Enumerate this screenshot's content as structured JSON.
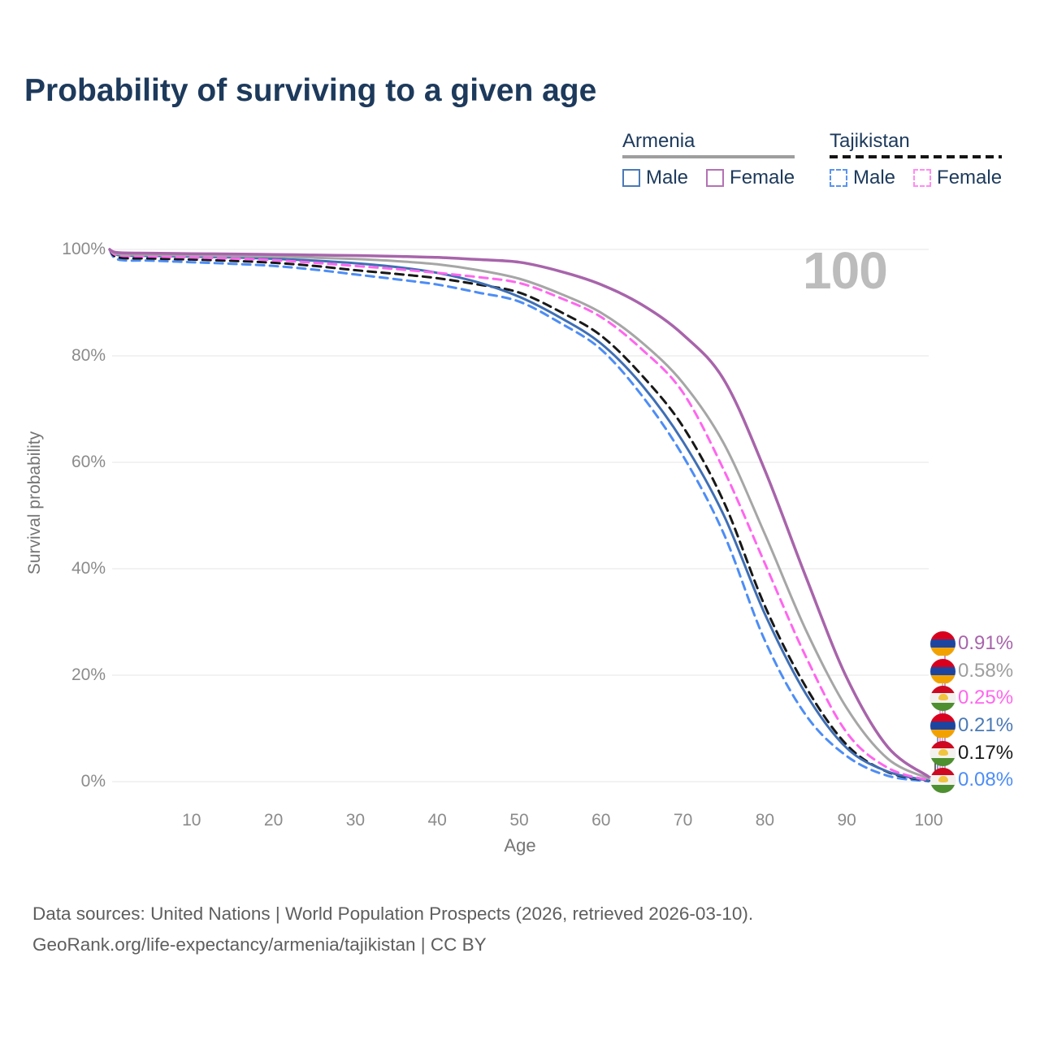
{
  "title": "Probability of surviving to a given age",
  "legend": {
    "groups": [
      {
        "label": "Armenia",
        "line_style": "solid",
        "rule_color": "#9e9e9e",
        "items": [
          {
            "label": "Male",
            "swatch_color": "#4a7ab5",
            "dashed": false
          },
          {
            "label": "Female",
            "swatch_color": "#b472b4",
            "dashed": false
          }
        ]
      },
      {
        "label": "Tajikistan",
        "line_style": "dashed",
        "rule_color": "#141414",
        "items": [
          {
            "label": "Male",
            "swatch_color": "#5a93f0",
            "dashed": true
          },
          {
            "label": "Female",
            "swatch_color": "#ff8df2",
            "dashed": true
          }
        ]
      }
    ]
  },
  "chart_data": {
    "type": "line",
    "title": "Probability of surviving to a given age",
    "xlabel": "Age",
    "ylabel": "Survival probability",
    "watermark": "100",
    "xlim": [
      0,
      100
    ],
    "ylim": [
      0,
      100
    ],
    "grid": "horizontal",
    "grid_color": "#e9e9e9",
    "x_ticks": [
      10,
      20,
      30,
      40,
      50,
      60,
      70,
      80,
      90,
      100
    ],
    "y_ticks": [
      "0%",
      "20%",
      "40%",
      "60%",
      "80%",
      "100%"
    ],
    "x": [
      0,
      1,
      5,
      10,
      15,
      20,
      25,
      30,
      35,
      40,
      45,
      50,
      55,
      60,
      65,
      70,
      75,
      80,
      85,
      90,
      95,
      100
    ],
    "series": [
      {
        "name": "Armenia Female",
        "country": "Armenia",
        "sex": "Female",
        "color": "#a864ab",
        "dashed": false,
        "width": 3.5,
        "end_label": "0.91%",
        "values": [
          100,
          99.4,
          99.3,
          99.2,
          99.15,
          99.05,
          98.95,
          98.85,
          98.7,
          98.5,
          98.1,
          97.6,
          95.9,
          93.4,
          89.6,
          84.0,
          75.5,
          58.5,
          38.5,
          19.5,
          6.5,
          0.91
        ]
      },
      {
        "name": "Armenia Both sexes",
        "country": "Armenia",
        "sex": "Both",
        "color": "#a6a6a6",
        "dashed": false,
        "width": 3,
        "end_label": "0.58%",
        "values": [
          100,
          99.15,
          99.0,
          98.9,
          98.8,
          98.65,
          98.45,
          98.2,
          97.8,
          97.2,
          96.1,
          94.5,
          91.7,
          88.1,
          82.5,
          74.9,
          63.5,
          46.5,
          28.5,
          13.8,
          4.3,
          0.58
        ]
      },
      {
        "name": "Tajikistan Female",
        "country": "Tajikistan",
        "sex": "Female",
        "color": "#ff66ee",
        "dashed": true,
        "width": 3,
        "end_label": "0.25%",
        "values": [
          100,
          98.9,
          98.7,
          98.5,
          98.3,
          98.0,
          97.5,
          96.9,
          96.3,
          95.6,
          94.8,
          93.7,
          90.9,
          87.3,
          81.2,
          73.1,
          58.5,
          41.0,
          23.5,
          9.2,
          2.6,
          0.25
        ]
      },
      {
        "name": "Armenia Male",
        "country": "Armenia",
        "sex": "Male",
        "color": "#3f6fb4",
        "dashed": false,
        "width": 3,
        "end_label": "0.21%",
        "values": [
          100,
          98.95,
          98.8,
          98.65,
          98.5,
          98.25,
          97.9,
          97.4,
          96.7,
          95.6,
          93.8,
          91.1,
          87.2,
          82.3,
          74.5,
          63.9,
          50.0,
          31.5,
          16.5,
          6.3,
          1.9,
          0.21
        ]
      },
      {
        "name": "Tajikistan Both sexes",
        "country": "Tajikistan",
        "sex": "Both",
        "color": "#181818",
        "dashed": true,
        "width": 3,
        "end_label": "0.17%",
        "values": [
          100,
          98.5,
          98.3,
          98.1,
          97.85,
          97.5,
          96.9,
          96.1,
          95.4,
          94.6,
          93.4,
          91.9,
          88.3,
          83.8,
          76.3,
          66.7,
          52.5,
          33.0,
          17.8,
          6.9,
          1.8,
          0.17
        ]
      },
      {
        "name": "Tajikistan Male",
        "country": "Tajikistan",
        "sex": "Male",
        "color": "#4d8df5",
        "dashed": true,
        "width": 3,
        "end_label": "0.08%",
        "values": [
          100,
          98.1,
          97.9,
          97.6,
          97.3,
          96.9,
          96.2,
          95.3,
          94.4,
          93.4,
          91.9,
          90.2,
          86.2,
          81.2,
          72.5,
          61.2,
          46.5,
          26.5,
          12.5,
          4.8,
          1.1,
          0.08
        ]
      }
    ],
    "legend_position": "top-right"
  },
  "end_labels": [
    {
      "value": "0.91%",
      "flag": "armenia",
      "color": "#a864ab"
    },
    {
      "value": "0.58%",
      "flag": "armenia",
      "color": "#9e9e9e"
    },
    {
      "value": "0.25%",
      "flag": "tajikistan",
      "color": "#ff66ee"
    },
    {
      "value": "0.21%",
      "flag": "armenia",
      "color": "#4a7ab5"
    },
    {
      "value": "0.17%",
      "flag": "tajikistan",
      "color": "#1a1a1a"
    },
    {
      "value": "0.08%",
      "flag": "tajikistan",
      "color": "#4d8df5"
    }
  ],
  "footer": {
    "line1": "Data sources: United Nations | World Population Prospects (2026, retrieved 2026-03-10).",
    "line2": "GeoRank.org/life-expectancy/armenia/tajikistan | CC BY"
  }
}
